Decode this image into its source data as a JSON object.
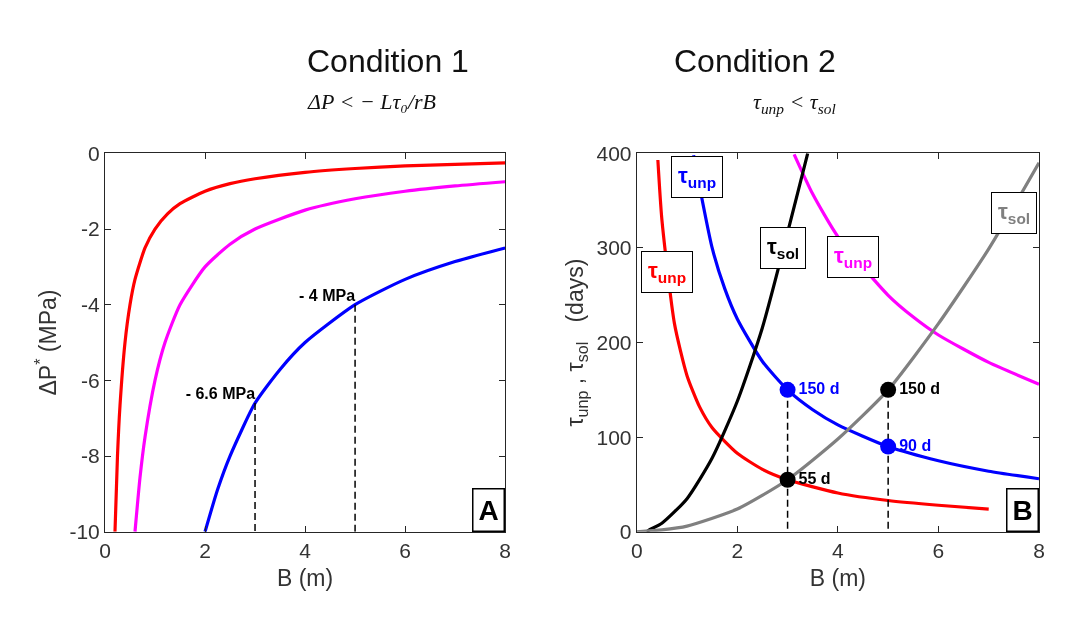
{
  "chart_data": [
    {
      "type": "line",
      "title": "Condition 1",
      "subtitle": "ΔP < − Lτ₀/rB",
      "xlabel": "B (m)",
      "ylabel": "ΔP$^{*}$ (MPa)",
      "xlim": [
        0,
        8
      ],
      "xticks": [
        0,
        2,
        4,
        6,
        8
      ],
      "ylim": [
        -10,
        0
      ],
      "yticks": [
        -10,
        -8,
        -6,
        -4,
        -2,
        0
      ],
      "series": [
        {
          "color": "#ff0000",
          "x": [
            0.2,
            0.25,
            0.3,
            0.4,
            0.5,
            0.6,
            0.8,
            1,
            1.25,
            1.5,
            2,
            2.5,
            3,
            4,
            5,
            6,
            7,
            8
          ],
          "values": [
            -10,
            -8,
            -6.67,
            -5,
            -4,
            -3.33,
            -2.5,
            -2,
            -1.6,
            -1.33,
            -1,
            -0.8,
            -0.67,
            -0.5,
            -0.4,
            -0.33,
            -0.29,
            -0.25
          ]
        },
        {
          "color": "#ff00ff",
          "x": [
            0.6,
            0.7,
            0.8,
            1,
            1.2,
            1.5,
            2,
            2.5,
            3,
            4,
            5,
            6,
            7,
            8
          ],
          "values": [
            -10,
            -8.57,
            -7.5,
            -6,
            -5,
            -4,
            -3,
            -2.4,
            -2,
            -1.5,
            -1.2,
            -1,
            -0.86,
            -0.75
          ]
        },
        {
          "color": "#0000ff",
          "x": [
            2,
            2.25,
            2.5,
            3,
            3.5,
            4,
            5,
            6,
            7,
            8
          ],
          "values": [
            -10,
            -8.89,
            -8,
            -6.6,
            -5.71,
            -5,
            -4,
            -3.33,
            -2.86,
            -2.5
          ]
        },
        {
          "color": "#000000",
          "line_style": "dashed",
          "x": [
            3,
            3
          ],
          "values": [
            -6.6,
            -10
          ],
          "value_labels": [
            "- 6.6 MPa",
            null
          ]
        },
        {
          "color": "#000000",
          "line_style": "dashed",
          "x": [
            5,
            5
          ],
          "values": [
            -4,
            -10
          ],
          "value_labels": [
            "- 4 MPa",
            null
          ]
        }
      ],
      "annotations": [
        "A"
      ]
    },
    {
      "type": "line",
      "title": "Condition 2",
      "subtitle": "τ$_{unp}$ < τ$_{sol}$",
      "xlabel": "B (m)",
      "ylabel": "τ$_{unp}$ , τ$_{sol}$   (days)",
      "xlim": [
        0,
        8
      ],
      "xticks": [
        0,
        2,
        4,
        6,
        8
      ],
      "ylim": [
        0,
        400
      ],
      "yticks": [
        0,
        100,
        200,
        300,
        400
      ],
      "series": [
        {
          "color": "#ff0000",
          "x": [
            0.42,
            0.5,
            0.75,
            1,
            1.25,
            1.5,
            2,
            2.5,
            3,
            4,
            5,
            6,
            7
          ],
          "values": [
            393,
            330,
            220,
            165,
            132,
            110,
            83,
            66,
            55,
            41,
            33,
            28,
            24
          ]
        },
        {
          "color": "#0000ff",
          "x": [
            1.13,
            1.5,
            1.75,
            2,
            2.5,
            3,
            3.5,
            4,
            5,
            6,
            7,
            8
          ],
          "values": [
            398,
            300,
            257,
            225,
            180,
            150,
            129,
            113,
            90,
            75,
            64,
            56
          ]
        },
        {
          "color": "#ff00ff",
          "x": [
            3.13,
            3.5,
            4,
            5,
            5.5,
            6,
            7,
            8
          ],
          "values": [
            399,
            357,
            312,
            250,
            227,
            208,
            179,
            156
          ]
        },
        {
          "color": "#000000",
          "x": [
            0.2,
            0.25,
            0.5,
            1,
            1.5,
            2,
            2.5,
            3.4
          ],
          "values": [
            0,
            2,
            9,
            35,
            78,
            138,
            216,
            400
          ]
        },
        {
          "color": "#808080",
          "x": [
            0,
            0.5,
            1,
            2,
            3,
            4,
            5,
            6,
            7,
            8
          ],
          "values": [
            0,
            2,
            6,
            24,
            55,
            98,
            150,
            220,
            299,
            390
          ]
        },
        {
          "color": "#000000",
          "line_style": "dashed",
          "x": [
            3,
            3
          ],
          "values": [
            150,
            0
          ]
        },
        {
          "color": "#000000",
          "line_style": "dashed",
          "x": [
            5,
            5
          ],
          "values": [
            150,
            0
          ]
        },
        {
          "type": "scatter",
          "marker": "circle",
          "color": "#0000ff",
          "x": [
            3,
            5
          ],
          "values": [
            150,
            90
          ],
          "value_labels": [
            "150 d",
            "90 d"
          ]
        },
        {
          "type": "scatter",
          "marker": "circle",
          "color": "#000000",
          "x": [
            3,
            5
          ],
          "values": [
            55,
            150
          ],
          "value_labels": [
            "55 d",
            "150 d"
          ]
        }
      ],
      "annotations": [
        {
          "text": "τ$_{unp}$",
          "x": 0.6,
          "y": 275
        },
        {
          "text": "τ$_{unp}$",
          "x": 1.2,
          "y": 375
        },
        {
          "text": "τ$_{sol}$",
          "x": 2.9,
          "y": 300
        },
        {
          "text": "τ$_{unp}$",
          "x": 4.3,
          "y": 290
        },
        {
          "text": "τ$_{sol}$",
          "x": 7.5,
          "y": 337
        },
        "B"
      ]
    }
  ]
}
